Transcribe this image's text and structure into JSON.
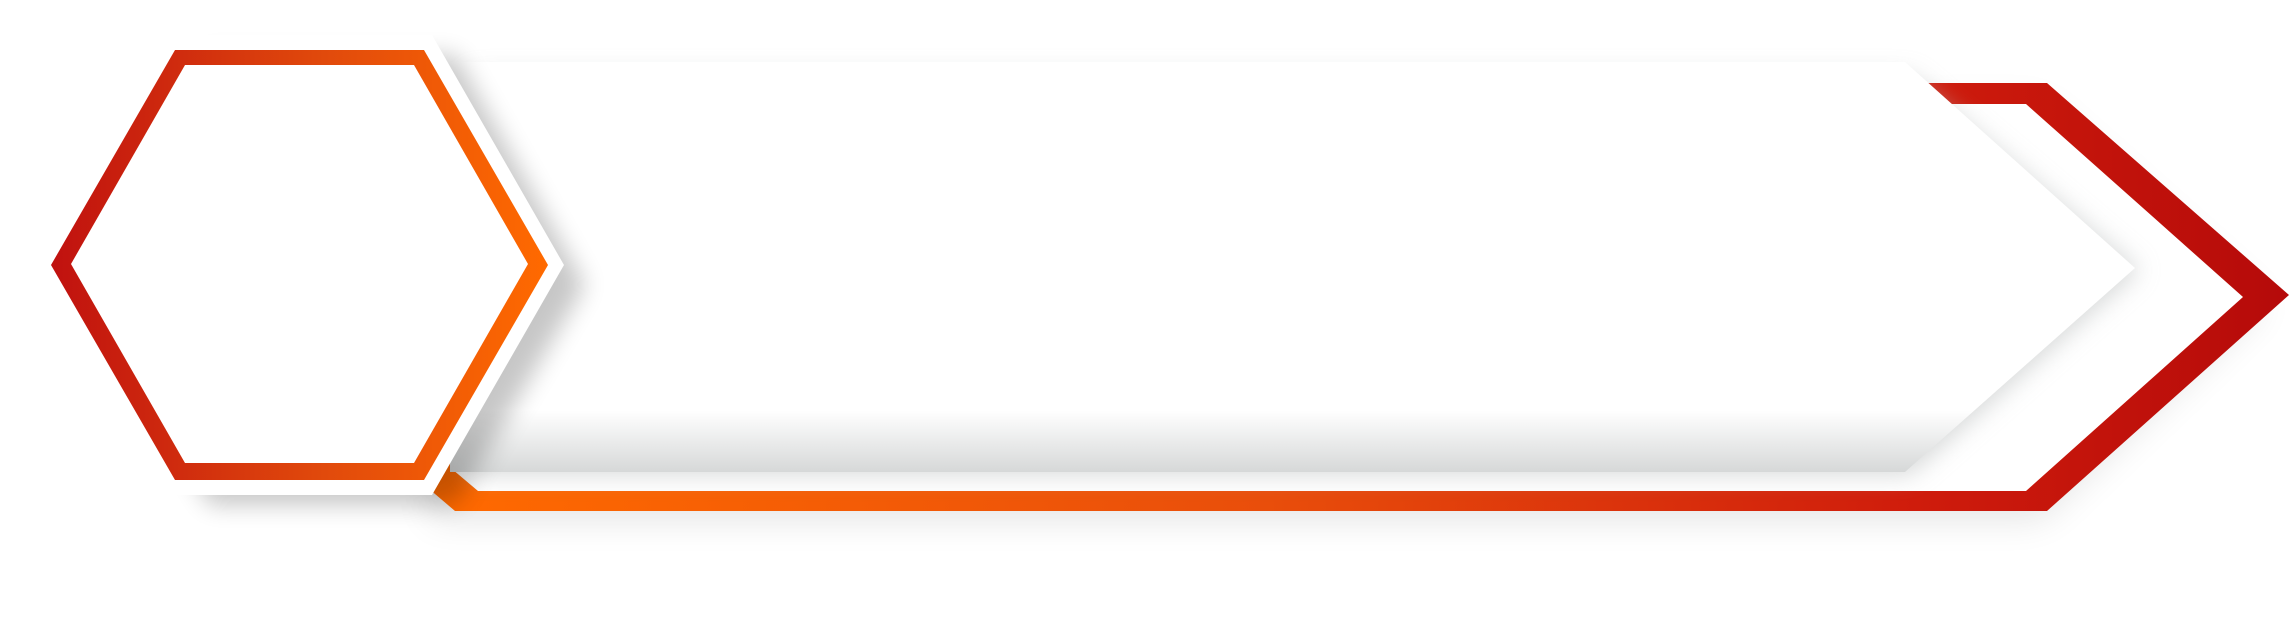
{
  "graphic": {
    "description_icon": "hexagon-arrow-banner-icon",
    "colors": {
      "background": "#ffffff",
      "orange": "#ff6a00",
      "orange_dark": "#e65100",
      "red": "#c0110f",
      "red_dark": "#b50a0a",
      "shadow": "#c9cbcb",
      "panel_fill": "#ffffff"
    }
  }
}
